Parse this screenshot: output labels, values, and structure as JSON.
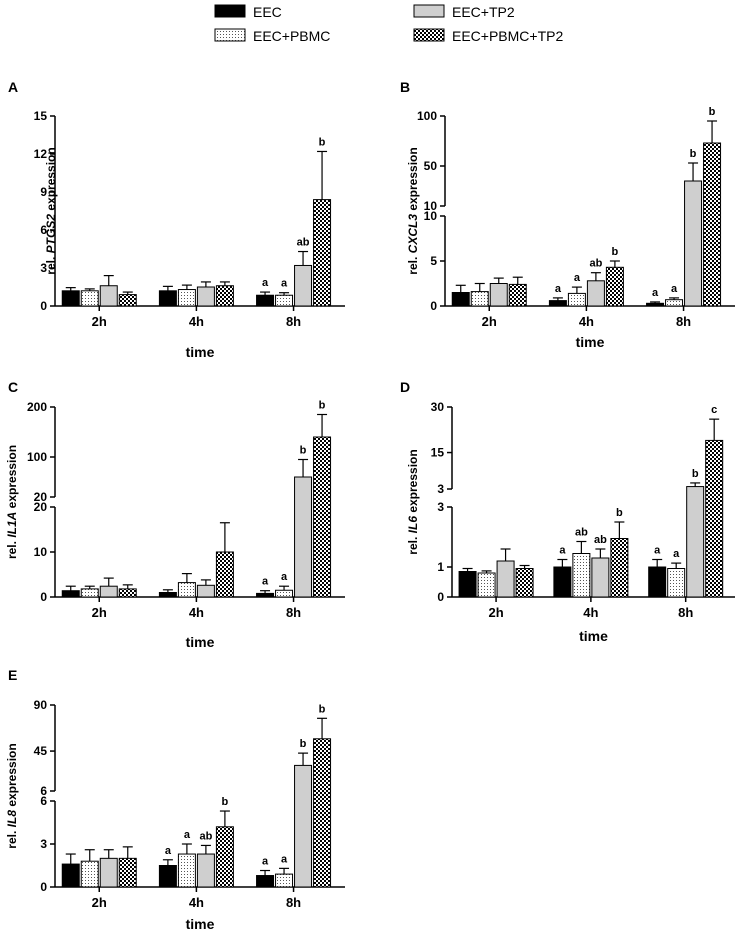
{
  "legend": [
    {
      "name": "EEC",
      "pattern": "black"
    },
    {
      "name": "EEC+PBMC",
      "pattern": "dots"
    },
    {
      "name": "EEC+TP2",
      "pattern": "gray"
    },
    {
      "name": "EEC+PBMC+TP2",
      "pattern": "checker"
    }
  ],
  "colors": {
    "black": "#000000",
    "gray": "#cfcfcf",
    "white": "#ffffff"
  },
  "chart_data": [
    {
      "type": "bar",
      "panel": "A",
      "gene": "PTGS2",
      "ylabel_prefix": "rel. ",
      "ylabel_gene": "PTGS2",
      "ylabel_suffix": " expression",
      "xlabel": "time",
      "categories": [
        "2h",
        "4h",
        "8h"
      ],
      "segments": [
        {
          "ylim": [
            0,
            15
          ],
          "ticks": [
            "0",
            "3",
            "6",
            "9",
            "12",
            "15"
          ]
        }
      ],
      "series": [
        {
          "name": "EEC",
          "values": [
            1.2,
            1.2,
            0.85
          ],
          "errors": [
            0.25,
            0.35,
            0.25
          ]
        },
        {
          "name": "EEC+PBMC",
          "values": [
            1.2,
            1.3,
            0.85
          ],
          "errors": [
            0.15,
            0.35,
            0.2
          ]
        },
        {
          "name": "EEC+TP2",
          "values": [
            1.6,
            1.5,
            3.2
          ],
          "errors": [
            0.8,
            0.4,
            1.1
          ]
        },
        {
          "name": "EEC+PBMC+TP2",
          "values": [
            0.9,
            1.6,
            8.4
          ],
          "errors": [
            0.2,
            0.3,
            3.8
          ]
        }
      ],
      "letters": [
        [
          "",
          "",
          "a"
        ],
        [
          "",
          "",
          "a"
        ],
        [
          "",
          "",
          "ab"
        ],
        [
          "",
          "",
          "b"
        ]
      ]
    },
    {
      "type": "bar",
      "panel": "B",
      "gene": "CXCL3",
      "ylabel_prefix": "rel. ",
      "ylabel_gene": "CXCL3",
      "ylabel_suffix": " expression",
      "xlabel": "time",
      "categories": [
        "2h",
        "4h",
        "8h"
      ],
      "segments": [
        {
          "ylim": [
            0,
            10
          ],
          "ticks": [
            "0",
            "5",
            "10"
          ]
        },
        {
          "ylim": [
            10,
            100
          ],
          "ticks": [
            "10",
            "50",
            "100"
          ]
        }
      ],
      "series": [
        {
          "name": "EEC",
          "values": [
            1.5,
            0.6,
            0.3
          ],
          "errors": [
            0.8,
            0.3,
            0.15
          ]
        },
        {
          "name": "EEC+PBMC",
          "values": [
            1.6,
            1.4,
            0.7
          ],
          "errors": [
            0.9,
            0.7,
            0.2
          ]
        },
        {
          "name": "EEC+TP2",
          "values": [
            2.5,
            2.8,
            35
          ],
          "errors": [
            0.6,
            0.9,
            18
          ]
        },
        {
          "name": "EEC+PBMC+TP2",
          "values": [
            2.4,
            4.3,
            73
          ],
          "errors": [
            0.8,
            0.7,
            22
          ]
        }
      ],
      "letters": [
        [
          "",
          "a",
          "a"
        ],
        [
          "",
          "a",
          "a"
        ],
        [
          "",
          "ab",
          "b"
        ],
        [
          "",
          "b",
          "b"
        ]
      ]
    },
    {
      "type": "bar",
      "panel": "C",
      "gene": "IL1A",
      "ylabel_prefix": "rel. ",
      "ylabel_gene": "IL1A",
      "ylabel_suffix": " expression",
      "xlabel": "time",
      "categories": [
        "2h",
        "4h",
        "8h"
      ],
      "segments": [
        {
          "ylim": [
            0,
            20
          ],
          "ticks": [
            "0",
            "10",
            "20"
          ]
        },
        {
          "ylim": [
            20,
            200
          ],
          "ticks": [
            "20",
            "100",
            "200"
          ]
        }
      ],
      "series": [
        {
          "name": "EEC",
          "values": [
            1.4,
            1.0,
            0.8
          ],
          "errors": [
            1.0,
            0.6,
            0.6
          ]
        },
        {
          "name": "EEC+PBMC",
          "values": [
            1.8,
            3.2,
            1.5
          ],
          "errors": [
            0.6,
            2.0,
            0.9
          ]
        },
        {
          "name": "EEC+TP2",
          "values": [
            2.4,
            2.6,
            60
          ],
          "errors": [
            1.8,
            1.2,
            35
          ]
        },
        {
          "name": "EEC+PBMC+TP2",
          "values": [
            1.8,
            10.0,
            140
          ],
          "errors": [
            0.9,
            6.5,
            45
          ]
        }
      ],
      "letters": [
        [
          "",
          "",
          "a"
        ],
        [
          "",
          "",
          "a"
        ],
        [
          "",
          "",
          "b"
        ],
        [
          "",
          "",
          "b"
        ]
      ]
    },
    {
      "type": "bar",
      "panel": "D",
      "gene": "IL6",
      "ylabel_prefix": "rel. ",
      "ylabel_gene": "IL6",
      "ylabel_suffix": " expression",
      "xlabel": "time",
      "categories": [
        "2h",
        "4h",
        "8h"
      ],
      "segments": [
        {
          "ylim": [
            0,
            3
          ],
          "ticks": [
            "0",
            "1",
            "3"
          ]
        },
        {
          "ylim": [
            3,
            30
          ],
          "ticks": [
            "3",
            "15",
            "30"
          ]
        }
      ],
      "series": [
        {
          "name": "EEC",
          "values": [
            0.85,
            1.0,
            1.0
          ],
          "errors": [
            0.1,
            0.25,
            0.25
          ]
        },
        {
          "name": "EEC+PBMC",
          "values": [
            0.8,
            1.45,
            0.95
          ],
          "errors": [
            0.07,
            0.4,
            0.18
          ]
        },
        {
          "name": "EEC+TP2",
          "values": [
            1.2,
            1.3,
            3.8
          ],
          "errors": [
            0.4,
            0.3,
            1.2
          ]
        },
        {
          "name": "EEC+PBMC+TP2",
          "values": [
            0.95,
            1.95,
            19
          ],
          "errors": [
            0.1,
            0.55,
            7
          ]
        }
      ],
      "letters": [
        [
          "",
          "a",
          "a"
        ],
        [
          "",
          "ab",
          "a"
        ],
        [
          "",
          "ab",
          "b"
        ],
        [
          "",
          "b",
          "c"
        ]
      ]
    },
    {
      "type": "bar",
      "panel": "E",
      "gene": "IL8",
      "ylabel_prefix": "rel. ",
      "ylabel_gene": "IL8",
      "ylabel_suffix": " expression",
      "xlabel": "time",
      "categories": [
        "2h",
        "4h",
        "8h"
      ],
      "segments": [
        {
          "ylim": [
            0,
            6
          ],
          "ticks": [
            "0",
            "3",
            "6"
          ]
        },
        {
          "ylim": [
            6,
            90
          ],
          "ticks": [
            "6",
            "45",
            "90"
          ]
        }
      ],
      "series": [
        {
          "name": "EEC",
          "values": [
            1.6,
            1.5,
            0.8
          ],
          "errors": [
            0.7,
            0.4,
            0.35
          ]
        },
        {
          "name": "EEC+PBMC",
          "values": [
            1.8,
            2.3,
            0.9
          ],
          "errors": [
            0.8,
            0.7,
            0.4
          ]
        },
        {
          "name": "EEC+TP2",
          "values": [
            2.0,
            2.3,
            31
          ],
          "errors": [
            0.6,
            0.6,
            12
          ]
        },
        {
          "name": "EEC+PBMC+TP2",
          "values": [
            2.0,
            4.2,
            57
          ],
          "errors": [
            0.8,
            1.1,
            20
          ]
        }
      ],
      "letters": [
        [
          "",
          "a",
          "a"
        ],
        [
          "",
          "a",
          "a"
        ],
        [
          "",
          "ab",
          "b"
        ],
        [
          "",
          "b",
          "b"
        ]
      ]
    }
  ]
}
